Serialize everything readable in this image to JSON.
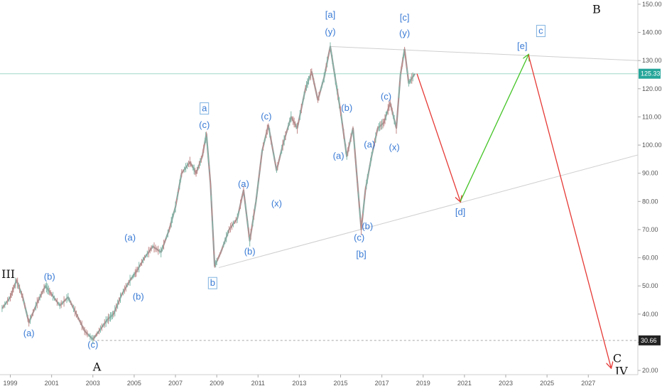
{
  "chart_data": {
    "type": "line",
    "title": "",
    "xlabel": "",
    "ylabel": "",
    "x_tick_labels": [
      "1999",
      "2001",
      "2003",
      "2005",
      "2007",
      "2009",
      "2011",
      "2013",
      "2015",
      "2017",
      "2019",
      "2021",
      "2023",
      "2025",
      "2027"
    ],
    "y_tick_labels": [
      "20.00",
      "30.00",
      "40.00",
      "50.00",
      "60.00",
      "70.00",
      "80.00",
      "90.00",
      "100.00",
      "110.00",
      "120.00",
      "130.00",
      "140.00",
      "150.00"
    ],
    "ylim": [
      18.5,
      151.5
    ],
    "xlim": [
      1998.5,
      2029.4
    ],
    "scale": "linear",
    "grid": false,
    "series": [
      {
        "values": [
          [
            1998.6,
            42
          ],
          [
            1999.0,
            46
          ],
          [
            1999.3,
            52
          ],
          [
            1999.6,
            46
          ],
          [
            1999.9,
            37
          ],
          [
            2000.3,
            44
          ],
          [
            2000.7,
            50
          ],
          [
            2001.0,
            47
          ],
          [
            2001.4,
            43
          ],
          [
            2001.8,
            46
          ],
          [
            2002.2,
            40
          ],
          [
            2002.6,
            34
          ],
          [
            2003.0,
            31
          ],
          [
            2003.3,
            34
          ],
          [
            2003.7,
            38
          ],
          [
            2004.0,
            40
          ],
          [
            2004.4,
            47
          ],
          [
            2004.8,
            52
          ],
          [
            2005.1,
            55
          ],
          [
            2005.5,
            60
          ],
          [
            2005.9,
            64
          ],
          [
            2006.3,
            62
          ],
          [
            2006.7,
            70
          ],
          [
            2007.0,
            78
          ],
          [
            2007.3,
            90
          ],
          [
            2007.7,
            94
          ],
          [
            2008.0,
            90
          ],
          [
            2008.3,
            96
          ],
          [
            2008.5,
            104
          ],
          [
            2008.7,
            86
          ],
          [
            2008.9,
            57
          ],
          [
            2009.2,
            62
          ],
          [
            2009.6,
            70
          ],
          [
            2010.0,
            74
          ],
          [
            2010.3,
            84
          ],
          [
            2010.6,
            66
          ],
          [
            2010.9,
            80
          ],
          [
            2011.2,
            98
          ],
          [
            2011.5,
            107
          ],
          [
            2011.9,
            91
          ],
          [
            2012.2,
            100
          ],
          [
            2012.6,
            110
          ],
          [
            2012.9,
            106
          ],
          [
            2013.3,
            120
          ],
          [
            2013.6,
            126
          ],
          [
            2013.9,
            116
          ],
          [
            2014.2,
            124
          ],
          [
            2014.5,
            135
          ],
          [
            2014.8,
            121
          ],
          [
            2015.0,
            112
          ],
          [
            2015.3,
            96
          ],
          [
            2015.6,
            106
          ],
          [
            2015.8,
            88
          ],
          [
            2016.0,
            70
          ],
          [
            2016.2,
            84
          ],
          [
            2016.5,
            96
          ],
          [
            2016.8,
            106
          ],
          [
            2017.1,
            108
          ],
          [
            2017.4,
            115
          ],
          [
            2017.7,
            106
          ],
          [
            2017.9,
            125
          ],
          [
            2018.1,
            134
          ],
          [
            2018.3,
            122
          ],
          [
            2018.6,
            125.33
          ]
        ],
        "color": "#999999"
      },
      {
        "values": [
          [
            2018.7,
            125.33
          ],
          [
            2020.8,
            80
          ]
        ],
        "color": "#e53935"
      },
      {
        "values": [
          [
            2020.8,
            80
          ],
          [
            2024.1,
            132
          ]
        ],
        "color": "#43c425"
      },
      {
        "values": [
          [
            2024.1,
            132
          ],
          [
            2028.1,
            21
          ]
        ],
        "color": "#e53935"
      }
    ],
    "trendlines": [
      {
        "values": [
          [
            2014.5,
            135
          ],
          [
            2029.4,
            130
          ]
        ],
        "color": "#cfcfcf"
      },
      {
        "values": [
          [
            2009.1,
            56.5
          ],
          [
            2029.4,
            96.5
          ]
        ],
        "color": "#cfcfcf"
      },
      {
        "values": [
          [
            1998.5,
            125.33
          ],
          [
            2029.4,
            125.33
          ]
        ],
        "color": "#9fd9c9"
      },
      {
        "values": [
          [
            2003.0,
            30.66
          ],
          [
            2029.4,
            30.66
          ]
        ],
        "color": "#a8a8a8",
        "dashed": true
      }
    ],
    "price_tags": [
      {
        "label": "125.33",
        "value": 125.33,
        "color": "#26a69a"
      },
      {
        "label": "30.66",
        "value": 30.66,
        "color": "#222222"
      }
    ],
    "annotations": [
      {
        "text": "III",
        "x": 1998.9,
        "y": 54,
        "style": "black"
      },
      {
        "text": "A",
        "x": 2003.2,
        "y": 21,
        "style": "black"
      },
      {
        "text": "B",
        "x": 2027.4,
        "y": 148,
        "style": "black"
      },
      {
        "text": "C",
        "x": 2028.4,
        "y": 24,
        "style": "black"
      },
      {
        "text": "IV",
        "x": 2028.6,
        "y": 19.5,
        "style": "black"
      },
      {
        "text": "(a)",
        "x": 1999.9,
        "y": 33,
        "style": "blue"
      },
      {
        "text": "(b)",
        "x": 2000.9,
        "y": 53,
        "style": "blue"
      },
      {
        "text": "(c)",
        "x": 2003.0,
        "y": 29,
        "style": "blue"
      },
      {
        "text": "(a)",
        "x": 2004.8,
        "y": 67,
        "style": "blue"
      },
      {
        "text": "(b)",
        "x": 2005.2,
        "y": 46,
        "style": "blue"
      },
      {
        "text": "(c)",
        "x": 2008.4,
        "y": 107,
        "style": "blue"
      },
      {
        "text": "(a)",
        "x": 2010.3,
        "y": 86,
        "style": "blue"
      },
      {
        "text": "(b)",
        "x": 2010.6,
        "y": 62,
        "style": "blue"
      },
      {
        "text": "(c)",
        "x": 2011.4,
        "y": 110,
        "style": "blue"
      },
      {
        "text": "(x)",
        "x": 2011.9,
        "y": 79,
        "style": "blue"
      },
      {
        "text": "[a]",
        "x": 2014.5,
        "y": 146,
        "style": "blue"
      },
      {
        "text": "(y)",
        "x": 2014.5,
        "y": 140,
        "style": "blue"
      },
      {
        "text": "(b)",
        "x": 2015.3,
        "y": 113,
        "style": "blue"
      },
      {
        "text": "(a)",
        "x": 2014.9,
        "y": 96,
        "style": "blue"
      },
      {
        "text": "(a)",
        "x": 2016.4,
        "y": 100,
        "style": "blue"
      },
      {
        "text": "(b)",
        "x": 2016.3,
        "y": 71,
        "style": "blue"
      },
      {
        "text": "(c)",
        "x": 2015.9,
        "y": 67,
        "style": "blue"
      },
      {
        "text": "[b]",
        "x": 2016.0,
        "y": 61,
        "style": "blue"
      },
      {
        "text": "(c)",
        "x": 2017.2,
        "y": 117,
        "style": "blue"
      },
      {
        "text": "(x)",
        "x": 2017.6,
        "y": 99,
        "style": "blue"
      },
      {
        "text": "[c]",
        "x": 2018.1,
        "y": 145,
        "style": "blue"
      },
      {
        "text": "(y)",
        "x": 2018.1,
        "y": 139.5,
        "style": "blue"
      },
      {
        "text": "[d]",
        "x": 2020.8,
        "y": 76,
        "style": "blue"
      },
      {
        "text": "[e]",
        "x": 2023.8,
        "y": 135,
        "style": "blue"
      }
    ],
    "boxed_annotations": [
      {
        "text": "a",
        "x": 2008.4,
        "y": 113
      },
      {
        "text": "b",
        "x": 2008.8,
        "y": 51
      },
      {
        "text": "c",
        "x": 2024.7,
        "y": 140.5
      }
    ]
  }
}
